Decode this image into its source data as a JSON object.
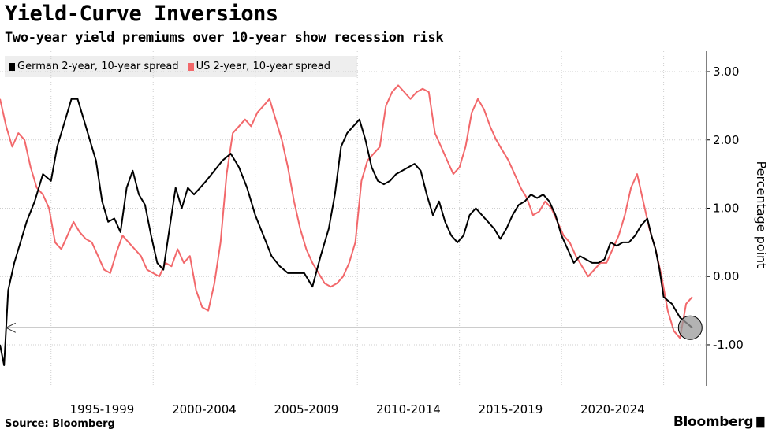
{
  "header": {
    "title": "Yield-Curve Inversions",
    "subtitle": "Two-year yield premiums over 10-year show recession risk"
  },
  "legend": [
    {
      "label": "German 2-year, 10-year spread",
      "color": "#000000"
    },
    {
      "label": "US 2-year, 10-year spread",
      "color": "#f2686b"
    }
  ],
  "footer": {
    "source": "Source: Bloomberg",
    "brand": "Bloomberg",
    "brand_icon": "bar-chart-icon"
  },
  "chart_data": {
    "type": "line",
    "title": "Yield-Curve Inversions",
    "subtitle": "Two-year yield premiums over 10-year show recession risk",
    "xlabel": "",
    "ylabel": "Percentage point",
    "xlim": [
      1990.5,
      2025.1
    ],
    "ylim": [
      -1.6,
      3.3
    ],
    "yticks": [
      -1.0,
      0.0,
      1.0,
      2.0,
      3.0
    ],
    "ytick_labels": [
      "-1.00",
      "0.00",
      "1.00",
      "2.00",
      "3.00"
    ],
    "xgrid": [
      1993,
      1998,
      2003,
      2008,
      2013,
      2018,
      2023
    ],
    "xtick_labels": [
      {
        "label": "1995-1999",
        "center": 1995.5
      },
      {
        "label": "2000-2004",
        "center": 2000.5
      },
      {
        "label": "2005-2009",
        "center": 2005.5
      },
      {
        "label": "2010-2014",
        "center": 2010.5
      },
      {
        "label": "2015-2019",
        "center": 2015.5
      },
      {
        "label": "2020-2024",
        "center": 2020.5
      }
    ],
    "series": [
      {
        "name": "German 2-year, 10-year spread",
        "color": "#000000",
        "x": [
          1990.5,
          1990.7,
          1990.9,
          1991.2,
          1991.5,
          1991.8,
          1992.2,
          1992.6,
          1993.0,
          1993.3,
          1993.6,
          1994.0,
          1994.3,
          1994.6,
          1994.9,
          1995.2,
          1995.5,
          1995.8,
          1996.1,
          1996.4,
          1996.7,
          1997.0,
          1997.3,
          1997.6,
          1997.9,
          1998.2,
          1998.5,
          1998.8,
          1999.1,
          1999.4,
          1999.7,
          2000.0,
          2000.3,
          2000.6,
          2001.0,
          2001.4,
          2001.8,
          2002.2,
          2002.6,
          2003.0,
          2003.4,
          2003.8,
          2004.2,
          2004.6,
          2005.0,
          2005.4,
          2005.8,
          2006.2,
          2006.6,
          2006.9,
          2007.2,
          2007.5,
          2007.8,
          2008.1,
          2008.4,
          2008.7,
          2009.0,
          2009.3,
          2009.6,
          2009.9,
          2010.2,
          2010.5,
          2010.8,
          2011.1,
          2011.4,
          2011.7,
          2012.0,
          2012.3,
          2012.6,
          2012.9,
          2013.2,
          2013.5,
          2013.8,
          2014.1,
          2014.4,
          2014.7,
          2015.0,
          2015.3,
          2015.6,
          2015.9,
          2016.2,
          2016.5,
          2016.8,
          2017.1,
          2017.4,
          2017.7,
          2018.0,
          2018.3,
          2018.6,
          2018.9,
          2019.2,
          2019.5,
          2019.8,
          2020.1,
          2020.4,
          2020.7,
          2021.0,
          2021.3,
          2021.6,
          2021.9,
          2022.2,
          2022.4,
          2022.6,
          2022.8,
          2023.0,
          2023.2,
          2023.4,
          2023.6,
          2023.8,
          2024.0,
          2024.2,
          2024.4
        ],
        "y": [
          -1.0,
          -1.3,
          -0.2,
          0.2,
          0.5,
          0.8,
          1.1,
          1.5,
          1.4,
          1.9,
          2.2,
          2.6,
          2.6,
          2.3,
          2.0,
          1.7,
          1.1,
          0.8,
          0.85,
          0.65,
          1.3,
          1.55,
          1.2,
          1.05,
          0.6,
          0.2,
          0.1,
          0.7,
          1.3,
          1.0,
          1.3,
          1.2,
          1.3,
          1.4,
          1.55,
          1.7,
          1.8,
          1.6,
          1.3,
          0.9,
          0.6,
          0.3,
          0.15,
          0.05,
          0.05,
          0.05,
          -0.15,
          0.3,
          0.7,
          1.2,
          1.9,
          2.1,
          2.2,
          2.3,
          2.0,
          1.6,
          1.4,
          1.35,
          1.4,
          1.5,
          1.55,
          1.6,
          1.65,
          1.55,
          1.2,
          0.9,
          1.1,
          0.8,
          0.6,
          0.5,
          0.6,
          0.9,
          1.0,
          0.9,
          0.8,
          0.7,
          0.55,
          0.7,
          0.9,
          1.05,
          1.1,
          1.2,
          1.15,
          1.2,
          1.1,
          0.9,
          0.6,
          0.4,
          0.2,
          0.3,
          0.25,
          0.2,
          0.2,
          0.25,
          0.5,
          0.45,
          0.5,
          0.5,
          0.6,
          0.75,
          0.85,
          0.6,
          0.4,
          0.1,
          -0.3,
          -0.35,
          -0.4,
          -0.5,
          -0.6,
          -0.65,
          -0.7,
          -0.75
        ]
      },
      {
        "name": "US 2-year, 10-year spread",
        "color": "#f2686b",
        "x": [
          1990.5,
          1990.8,
          1991.1,
          1991.4,
          1991.7,
          1992.0,
          1992.3,
          1992.6,
          1992.9,
          1993.2,
          1993.5,
          1993.8,
          1994.1,
          1994.4,
          1994.7,
          1995.0,
          1995.3,
          1995.6,
          1995.9,
          1996.2,
          1996.5,
          1996.8,
          1997.1,
          1997.4,
          1997.7,
          1998.0,
          1998.3,
          1998.6,
          1998.9,
          1999.2,
          1999.5,
          1999.8,
          2000.1,
          2000.4,
          2000.7,
          2001.0,
          2001.3,
          2001.6,
          2001.9,
          2002.2,
          2002.5,
          2002.8,
          2003.1,
          2003.4,
          2003.7,
          2004.0,
          2004.3,
          2004.6,
          2004.9,
          2005.2,
          2005.5,
          2005.8,
          2006.1,
          2006.4,
          2006.7,
          2007.0,
          2007.3,
          2007.6,
          2007.9,
          2008.2,
          2008.5,
          2008.8,
          2009.1,
          2009.4,
          2009.7,
          2010.0,
          2010.3,
          2010.6,
          2010.9,
          2011.2,
          2011.5,
          2011.8,
          2012.1,
          2012.4,
          2012.7,
          2013.0,
          2013.3,
          2013.6,
          2013.9,
          2014.2,
          2014.5,
          2014.8,
          2015.1,
          2015.4,
          2015.7,
          2016.0,
          2016.3,
          2016.6,
          2016.9,
          2017.2,
          2017.5,
          2017.8,
          2018.1,
          2018.4,
          2018.7,
          2019.0,
          2019.3,
          2019.6,
          2019.9,
          2020.2,
          2020.5,
          2020.8,
          2021.1,
          2021.4,
          2021.7,
          2022.0,
          2022.3,
          2022.6,
          2022.9,
          2023.2,
          2023.5,
          2023.8,
          2024.1,
          2024.4
        ],
        "y": [
          2.6,
          2.2,
          1.9,
          2.1,
          2.0,
          1.6,
          1.3,
          1.2,
          1.0,
          0.5,
          0.4,
          0.6,
          0.8,
          0.65,
          0.55,
          0.5,
          0.3,
          0.1,
          0.05,
          0.35,
          0.6,
          0.5,
          0.4,
          0.3,
          0.1,
          0.05,
          0.0,
          0.2,
          0.15,
          0.4,
          0.2,
          0.3,
          -0.2,
          -0.45,
          -0.5,
          -0.1,
          0.5,
          1.5,
          2.1,
          2.2,
          2.3,
          2.2,
          2.4,
          2.5,
          2.6,
          2.3,
          2.0,
          1.6,
          1.1,
          0.7,
          0.4,
          0.2,
          0.05,
          -0.1,
          -0.15,
          -0.1,
          0.0,
          0.2,
          0.5,
          1.4,
          1.7,
          1.8,
          1.9,
          2.5,
          2.7,
          2.8,
          2.7,
          2.6,
          2.7,
          2.75,
          2.7,
          2.1,
          1.9,
          1.7,
          1.5,
          1.6,
          1.9,
          2.4,
          2.6,
          2.45,
          2.2,
          2.0,
          1.85,
          1.7,
          1.5,
          1.3,
          1.15,
          0.9,
          0.95,
          1.1,
          1.0,
          0.8,
          0.6,
          0.5,
          0.3,
          0.15,
          0.0,
          0.1,
          0.2,
          0.2,
          0.4,
          0.6,
          0.9,
          1.3,
          1.5,
          1.1,
          0.7,
          0.4,
          0.0,
          -0.5,
          -0.8,
          -0.9,
          -0.4,
          -0.3
        ]
      }
    ],
    "annotation": {
      "type": "arrow-with-circle",
      "y": -0.75,
      "x_from": 2024.3,
      "x_to": 1990.8
    }
  }
}
